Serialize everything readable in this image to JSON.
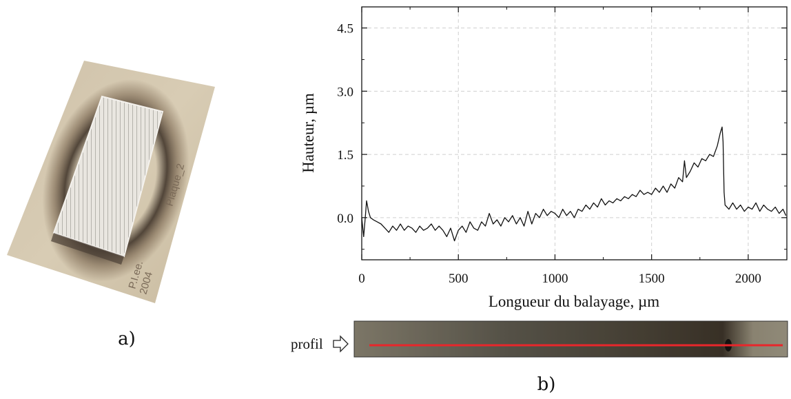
{
  "panel_a": {
    "label": "a)",
    "sample_texts": [
      "Plaque_2",
      "P.I.ee.",
      "2004"
    ]
  },
  "panel_b": {
    "label": "b)",
    "profile_label": "profil",
    "profile_arrow": "right-arrow-outline-icon",
    "profile_line_color": "#e8262b"
  },
  "chart_data": {
    "type": "line",
    "title": "",
    "xlabel": "Longueur du balayage, µm",
    "ylabel": "Hauteur, µm",
    "xlim": [
      0,
      2200
    ],
    "ylim": [
      -1.0,
      5.0
    ],
    "xticks": [
      0,
      500,
      1000,
      1500,
      2000
    ],
    "xtick_labels": [
      "0",
      "500",
      "1000",
      "1500",
      "2000"
    ],
    "yticks": [
      0.0,
      1.5,
      3.0,
      4.5
    ],
    "ytick_labels": [
      "0.0",
      "1.5",
      "3.0",
      "4.5"
    ],
    "grid": true,
    "series": [
      {
        "color": "#111111",
        "x": [
          0,
          10,
          20,
          25,
          35,
          45,
          60,
          80,
          100,
          120,
          140,
          160,
          180,
          200,
          220,
          240,
          260,
          280,
          300,
          320,
          340,
          360,
          380,
          400,
          420,
          440,
          460,
          480,
          500,
          520,
          540,
          560,
          580,
          600,
          620,
          640,
          660,
          680,
          700,
          720,
          740,
          760,
          780,
          800,
          820,
          840,
          860,
          880,
          900,
          920,
          940,
          960,
          980,
          1000,
          1020,
          1040,
          1060,
          1080,
          1100,
          1120,
          1140,
          1160,
          1180,
          1200,
          1220,
          1240,
          1260,
          1280,
          1300,
          1320,
          1340,
          1360,
          1380,
          1400,
          1420,
          1440,
          1460,
          1480,
          1500,
          1520,
          1540,
          1560,
          1580,
          1600,
          1620,
          1640,
          1660,
          1670,
          1680,
          1700,
          1720,
          1740,
          1760,
          1780,
          1800,
          1820,
          1840,
          1855,
          1865,
          1870,
          1875,
          1880,
          1900,
          1920,
          1940,
          1960,
          1980,
          2000,
          2020,
          2040,
          2060,
          2080,
          2100,
          2120,
          2140,
          2160,
          2180,
          2195
        ],
        "y": [
          0.0,
          -0.45,
          0.1,
          0.4,
          0.15,
          0.0,
          -0.05,
          -0.1,
          -0.15,
          -0.25,
          -0.35,
          -0.2,
          -0.3,
          -0.15,
          -0.3,
          -0.2,
          -0.25,
          -0.35,
          -0.2,
          -0.3,
          -0.25,
          -0.15,
          -0.3,
          -0.2,
          -0.3,
          -0.45,
          -0.25,
          -0.55,
          -0.3,
          -0.2,
          -0.35,
          -0.1,
          -0.25,
          -0.3,
          -0.1,
          -0.2,
          0.1,
          -0.15,
          -0.05,
          -0.2,
          0.0,
          -0.1,
          0.05,
          -0.15,
          0.0,
          -0.2,
          0.15,
          -0.15,
          0.1,
          0.0,
          0.2,
          0.05,
          0.15,
          0.1,
          0.0,
          0.2,
          0.05,
          0.15,
          0.0,
          0.2,
          0.15,
          0.3,
          0.2,
          0.35,
          0.25,
          0.45,
          0.3,
          0.4,
          0.35,
          0.45,
          0.4,
          0.5,
          0.45,
          0.55,
          0.5,
          0.65,
          0.55,
          0.6,
          0.55,
          0.7,
          0.6,
          0.75,
          0.6,
          0.8,
          0.7,
          0.95,
          0.85,
          1.35,
          0.95,
          1.1,
          1.3,
          1.2,
          1.4,
          1.35,
          1.5,
          1.45,
          1.7,
          2.0,
          2.15,
          1.8,
          0.6,
          0.3,
          0.2,
          0.35,
          0.2,
          0.3,
          0.15,
          0.25,
          0.2,
          0.35,
          0.15,
          0.3,
          0.2,
          0.15,
          0.25,
          0.1,
          0.2,
          0.05
        ]
      }
    ]
  }
}
